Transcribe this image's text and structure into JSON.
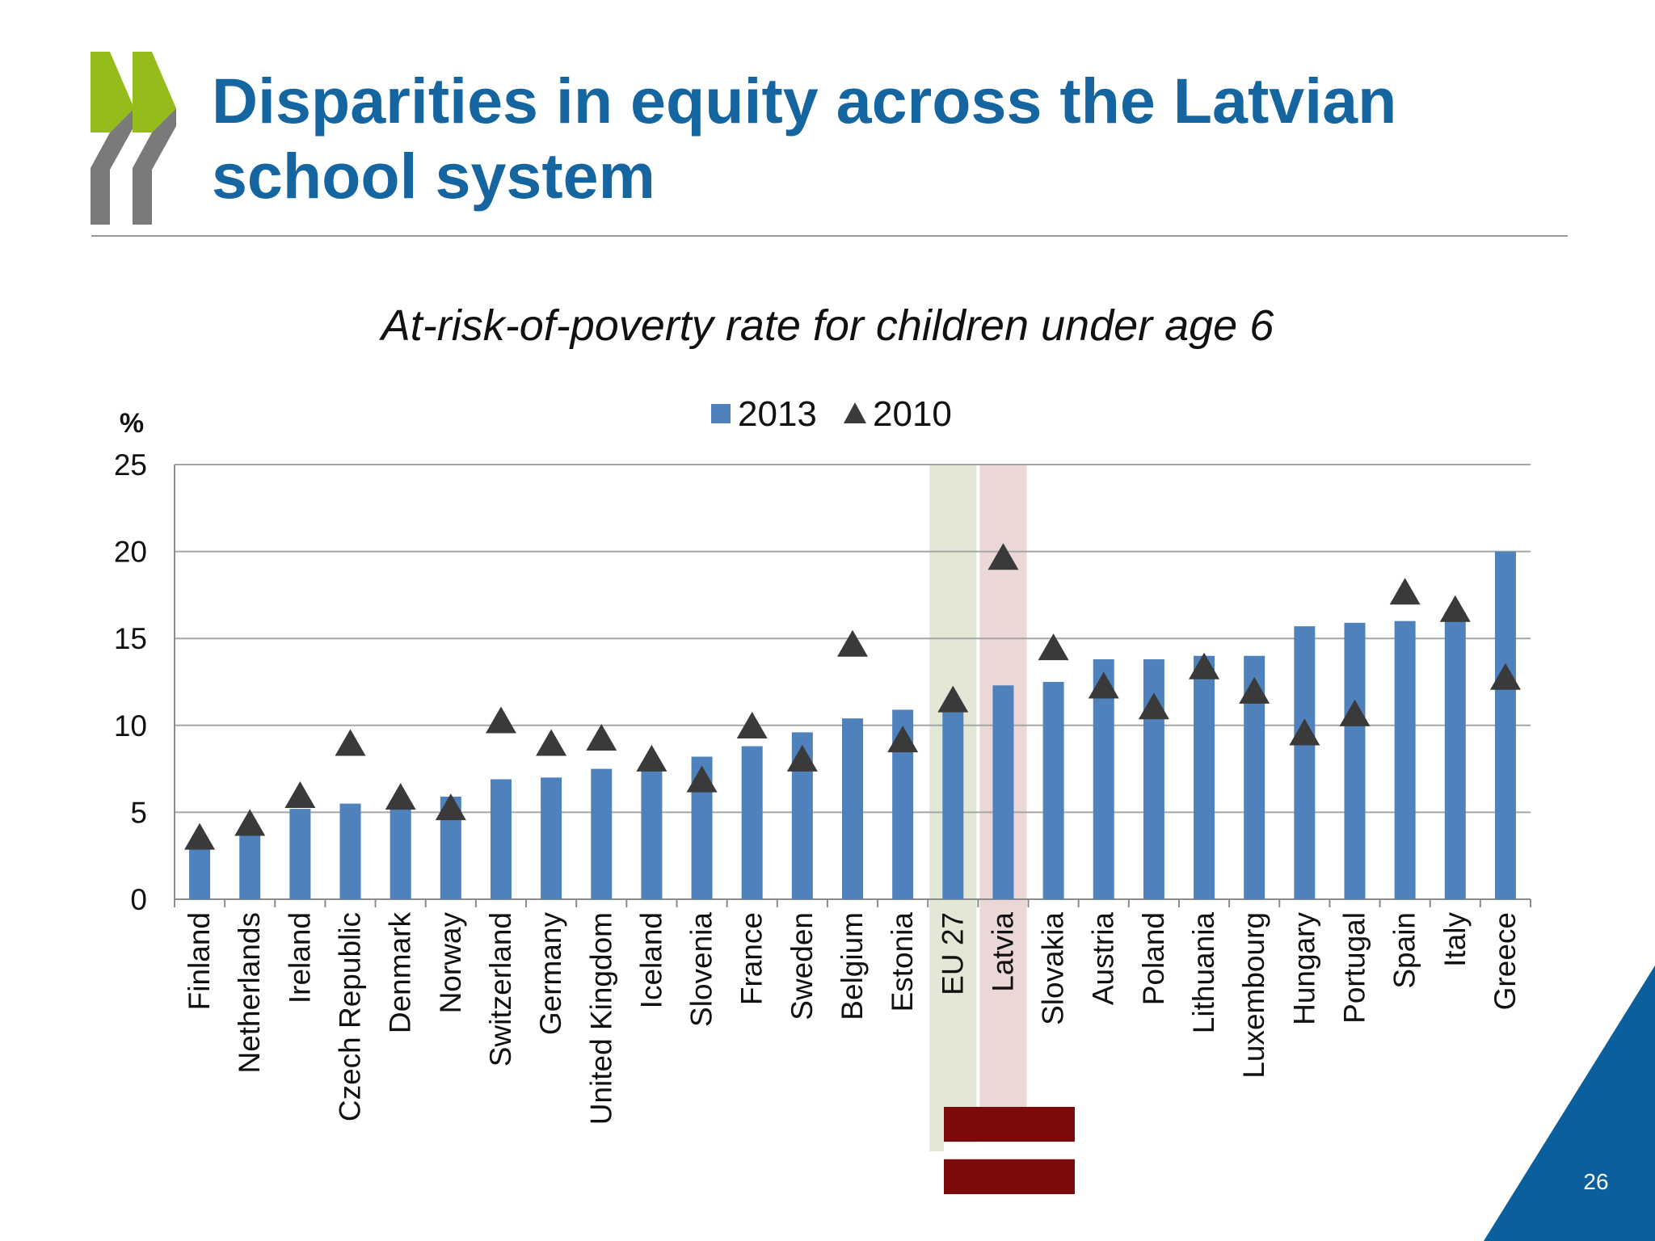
{
  "slide": {
    "title": "Disparities in equity across the Latvian school system",
    "page_number": "26",
    "colors": {
      "title": "#1565a0",
      "logo_green": "#94bd1c",
      "logo_grey": "#7a7a7a",
      "corner_blue": "#0b5f9c"
    }
  },
  "chart_data": {
    "type": "bar",
    "title": "At-risk-of-poverty rate for children under age 6",
    "ylabel": "%",
    "ylim": [
      0,
      25
    ],
    "yticks": [
      0,
      5,
      10,
      15,
      20,
      25
    ],
    "grid": true,
    "legend_position": "top-center",
    "categories": [
      "Finland",
      "Netherlands",
      "Ireland",
      "Czech Republic",
      "Denmark",
      "Norway",
      "Switzerland",
      "Germany",
      "United Kingdom",
      "Iceland",
      "Slovenia",
      "France",
      "Sweden",
      "Belgium",
      "Estonia",
      "EU 27",
      "Latvia",
      "Slovakia",
      "Austria",
      "Poland",
      "Lithuania",
      "Luxembourg",
      "Hungary",
      "Portugal",
      "Spain",
      "Italy",
      "Greece"
    ],
    "series": [
      {
        "name": "2013",
        "kind": "bar",
        "color": "#4f81bd",
        "values": [
          3.3,
          3.8,
          5.2,
          5.5,
          5.3,
          5.9,
          6.9,
          7.0,
          7.5,
          7.5,
          8.2,
          8.8,
          9.6,
          10.4,
          10.9,
          11.2,
          12.3,
          12.5,
          13.8,
          13.8,
          14.0,
          14.0,
          15.7,
          15.9,
          16.0,
          16.5,
          20.0
        ]
      },
      {
        "name": "2010",
        "kind": "marker",
        "marker": "triangle",
        "color": "#3a3a3a",
        "values": [
          3.5,
          4.3,
          5.9,
          8.9,
          5.8,
          5.2,
          10.2,
          8.9,
          9.2,
          8.0,
          6.8,
          9.9,
          8.0,
          14.6,
          9.1,
          11.4,
          19.6,
          14.4,
          12.2,
          11.0,
          13.3,
          11.9,
          9.5,
          10.6,
          17.6,
          16.6,
          12.7
        ]
      }
    ],
    "highlights": [
      {
        "category": "EU 27",
        "color": "#e3e8d6"
      },
      {
        "category": "Latvia",
        "color": "#ebd7d6"
      }
    ],
    "flag": {
      "category": "Latvia",
      "colors": [
        "#7c0a0a",
        "#ffffff",
        "#7c0a0a"
      ]
    }
  }
}
